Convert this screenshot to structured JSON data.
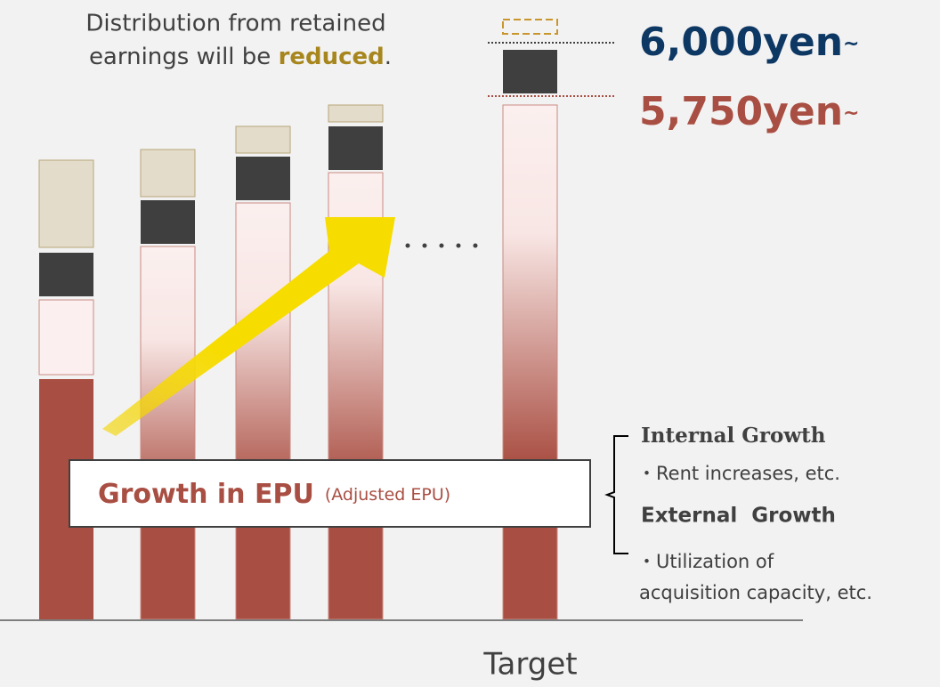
{
  "note": {
    "lines": [
      "Distribution from retained",
      "earnings will be "
    ],
    "highlight": "reduced",
    "end": "."
  },
  "targets": [
    {
      "amount": "6,000yen",
      "suffix": "~"
    },
    {
      "amount": "5,750yen",
      "suffix": "~"
    }
  ],
  "label": {
    "main": "Growth in EPU",
    "sub": "(Adjusted EPU)"
  },
  "drivers": [
    {
      "heading": "Internal Growth",
      "items": [
        "・Rent increases, etc."
      ]
    },
    {
      "heading": "External  Growth",
      "items": [
        "・Utilization of",
        "acquisition capacity, etc."
      ]
    }
  ],
  "x_label": "Target"
}
